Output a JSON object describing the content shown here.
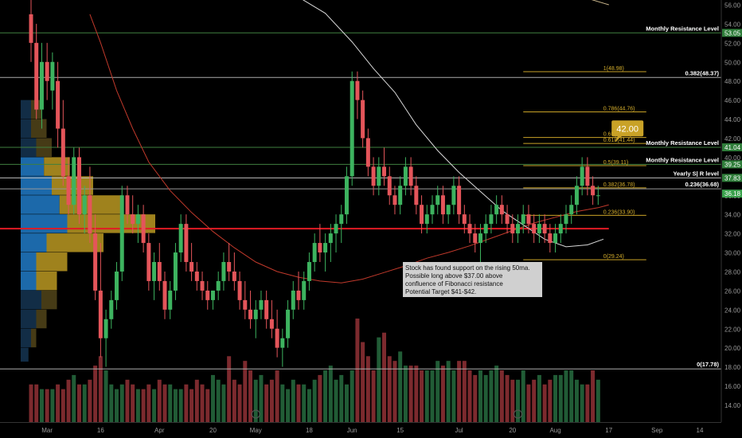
{
  "chart_data": {
    "type": "candlestick",
    "y_range": [
      12.2,
      56.5
    ],
    "y_ticks": [
      14,
      16,
      18,
      20,
      22,
      24,
      26,
      28,
      30,
      32,
      34,
      36,
      38,
      40,
      42,
      44,
      46,
      48,
      50,
      52,
      54,
      56
    ],
    "y_tick_labels": [
      "14.00",
      "16.00",
      "18.00",
      "20.00",
      "22.00",
      "24.00",
      "26.00",
      "28.00",
      "30.00",
      "32.00",
      "34.00",
      "36.00",
      "38.00",
      "40.00",
      "42.00",
      "44.00",
      "46.00",
      "48.00",
      "50.00",
      "52.00",
      "54.00",
      "56.00"
    ],
    "x_ticks": [
      {
        "label": "Mar",
        "bar": 3
      },
      {
        "label": "16",
        "bar": 13
      },
      {
        "label": "Apr",
        "bar": 24
      },
      {
        "label": "20",
        "bar": 34
      },
      {
        "label": "May",
        "bar": 42
      },
      {
        "label": "18",
        "bar": 52
      },
      {
        "label": "Jun",
        "bar": 60
      },
      {
        "label": "15",
        "bar": 69
      },
      {
        "label": "Jul",
        "bar": 80
      },
      {
        "label": "20",
        "bar": 90
      },
      {
        "label": "Aug",
        "bar": 98
      },
      {
        "label": "17",
        "bar": 108
      },
      {
        "label": "Sep",
        "bar": 117
      },
      {
        "label": "14",
        "bar": 125
      }
    ],
    "x_bar_range": [
      -2.5,
      137
    ],
    "colors": {
      "up": "#3db35f",
      "down": "#e4555a",
      "up_volume": "#215c36",
      "down_volume": "#7c2a2e"
    },
    "bar_step_px": 6.72,
    "candles_ohlc": [
      [
        55,
        58,
        50,
        52
      ],
      [
        52,
        54,
        44,
        45
      ],
      [
        45,
        52,
        43,
        50
      ],
      [
        50,
        52,
        46,
        48
      ],
      [
        47,
        51,
        45,
        50
      ],
      [
        48,
        50,
        41,
        43
      ],
      [
        43,
        46,
        37,
        38
      ],
      [
        38,
        40,
        34,
        35
      ],
      [
        35,
        41,
        34,
        40
      ],
      [
        40,
        41,
        33,
        34
      ],
      [
        34,
        37,
        32,
        36
      ],
      [
        36,
        39,
        31,
        32
      ],
      [
        32,
        34,
        25,
        26
      ],
      [
        26,
        31,
        19,
        21
      ],
      [
        21,
        24,
        18,
        23
      ],
      [
        23,
        26,
        22,
        25
      ],
      [
        25,
        29,
        24,
        28
      ],
      [
        28,
        37,
        27,
        36
      ],
      [
        36,
        37,
        33,
        34
      ],
      [
        34,
        36,
        32,
        33
      ],
      [
        33,
        35,
        31,
        34
      ],
      [
        34,
        35,
        30,
        31
      ],
      [
        31,
        32,
        26,
        27
      ],
      [
        27,
        30,
        25,
        29
      ],
      [
        29,
        31,
        26,
        27
      ],
      [
        27,
        28,
        23,
        24
      ],
      [
        24,
        27,
        23,
        26
      ],
      [
        26,
        31,
        25,
        30
      ],
      [
        30,
        34,
        29,
        33
      ],
      [
        33,
        34,
        28,
        29
      ],
      [
        29,
        31,
        27,
        28
      ],
      [
        28,
        29,
        26,
        27
      ],
      [
        27,
        28,
        25,
        26
      ],
      [
        26,
        27,
        24,
        25
      ],
      [
        25,
        26,
        24,
        26
      ],
      [
        26,
        28,
        25,
        27
      ],
      [
        27,
        30,
        26,
        29
      ],
      [
        29,
        31,
        27,
        28
      ],
      [
        28,
        30,
        26,
        27
      ],
      [
        27,
        28,
        24,
        25
      ],
      [
        25,
        27,
        23,
        24
      ],
      [
        24,
        26,
        22,
        23
      ],
      [
        23,
        25,
        21,
        24
      ],
      [
        24,
        26,
        23,
        25
      ],
      [
        25,
        26,
        22,
        23
      ],
      [
        23,
        25,
        21,
        22
      ],
      [
        22,
        24,
        19,
        20
      ],
      [
        20,
        22,
        18,
        21
      ],
      [
        21,
        25,
        20,
        24
      ],
      [
        24,
        27,
        23,
        26
      ],
      [
        26,
        28,
        24,
        25
      ],
      [
        25,
        28,
        24,
        27
      ],
      [
        27,
        30,
        26,
        29
      ],
      [
        29,
        32,
        28,
        31
      ],
      [
        31,
        33,
        29,
        30
      ],
      [
        30,
        32,
        28,
        31
      ],
      [
        31,
        33,
        29,
        32
      ],
      [
        32,
        34,
        30,
        33
      ],
      [
        33,
        35,
        31,
        34
      ],
      [
        34,
        39,
        33,
        38
      ],
      [
        38,
        49,
        37,
        48
      ],
      [
        48,
        49,
        44,
        46
      ],
      [
        46,
        47,
        41,
        42
      ],
      [
        42,
        43,
        38,
        39
      ],
      [
        39,
        40,
        36,
        37
      ],
      [
        37,
        40,
        36,
        39
      ],
      [
        39,
        41,
        37,
        38
      ],
      [
        38,
        39,
        35,
        36
      ],
      [
        36,
        37,
        34,
        35
      ],
      [
        35,
        38,
        34,
        37
      ],
      [
        37,
        40,
        36,
        39
      ],
      [
        39,
        40,
        36,
        37
      ],
      [
        37,
        38,
        34,
        35
      ],
      [
        35,
        36,
        32,
        33
      ],
      [
        33,
        35,
        32,
        34
      ],
      [
        34,
        36,
        33,
        35
      ],
      [
        35,
        37,
        34,
        36
      ],
      [
        36,
        37,
        33,
        34
      ],
      [
        34,
        35,
        33,
        35
      ],
      [
        35,
        38,
        34,
        37
      ],
      [
        37,
        38,
        33,
        34
      ],
      [
        34,
        35,
        32,
        33
      ],
      [
        33,
        34,
        31,
        32
      ],
      [
        32,
        33,
        30,
        31
      ],
      [
        31,
        33,
        29,
        32
      ],
      [
        32,
        34,
        31,
        33
      ],
      [
        33,
        35,
        32,
        34
      ],
      [
        34,
        36,
        33,
        35
      ],
      [
        35,
        36,
        33,
        34
      ],
      [
        34,
        35,
        32,
        33
      ],
      [
        33,
        34,
        31,
        32
      ],
      [
        32,
        34,
        31,
        33
      ],
      [
        33,
        35,
        32,
        34
      ],
      [
        34,
        35,
        32,
        33
      ],
      [
        33,
        34,
        31,
        32
      ],
      [
        32,
        34,
        31,
        33
      ],
      [
        33,
        34,
        31,
        32
      ],
      [
        32,
        33,
        30,
        31
      ],
      [
        31,
        33,
        30,
        32
      ],
      [
        32,
        34,
        31,
        33
      ],
      [
        33,
        35,
        32,
        34
      ],
      [
        34,
        36,
        33,
        35
      ],
      [
        35,
        38,
        34,
        37
      ],
      [
        37,
        40,
        36,
        39
      ],
      [
        39,
        40,
        36,
        37
      ],
      [
        37,
        38,
        35,
        36
      ],
      [
        36,
        37,
        35,
        36
      ]
    ],
    "volumes": [
      8,
      8,
      7,
      7,
      7,
      8,
      7,
      9,
      10,
      8,
      8,
      9,
      12,
      14,
      11,
      8,
      7,
      8,
      9,
      8,
      7,
      7,
      8,
      7,
      9,
      8,
      8,
      7,
      7,
      8,
      7,
      9,
      8,
      7,
      10,
      9,
      8,
      14,
      9,
      8,
      13,
      11,
      9,
      10,
      8,
      9,
      11,
      8,
      7,
      9,
      8,
      8,
      7,
      9,
      10,
      11,
      12,
      9,
      10,
      8,
      11,
      22,
      17,
      14,
      11,
      18,
      19,
      14,
      13,
      15,
      12,
      12,
      12,
      11,
      11,
      11,
      13,
      12,
      13,
      11,
      13,
      13,
      11,
      10,
      11,
      10,
      11,
      12,
      11,
      10,
      9,
      9,
      11,
      8,
      9,
      10,
      8,
      9,
      10,
      10,
      11,
      11,
      9,
      8,
      8,
      11,
      9
    ],
    "volume_scale_max": 22,
    "ma_fast": {
      "start_bar": 11,
      "points": [
        [
          11,
          55
        ],
        [
          13,
          52
        ],
        [
          16,
          47
        ],
        [
          19,
          43
        ],
        [
          22,
          39.5
        ],
        [
          26,
          36.5
        ],
        [
          30,
          34.2
        ],
        [
          34,
          32.2
        ],
        [
          38,
          30.5
        ],
        [
          42,
          29
        ],
        [
          46,
          28
        ],
        [
          50,
          27.4
        ],
        [
          54,
          27
        ],
        [
          58,
          26.8
        ],
        [
          62,
          27.2
        ],
        [
          66,
          27.9
        ],
        [
          70,
          28.6
        ],
        [
          74,
          29.4
        ],
        [
          78,
          30
        ],
        [
          82,
          30.7
        ],
        [
          86,
          31.5
        ],
        [
          90,
          32.3
        ],
        [
          94,
          33.1
        ],
        [
          98,
          33.7
        ],
        [
          102,
          34.3
        ],
        [
          106,
          34.7
        ],
        [
          108,
          35
        ]
      ]
    },
    "ma_slow": {
      "points": [
        [
          50,
          56.8
        ],
        [
          55,
          55.1
        ],
        [
          60,
          52.1
        ],
        [
          64,
          49.3
        ],
        [
          68,
          46.8
        ],
        [
          72,
          43.4
        ],
        [
          76,
          40.7
        ],
        [
          80,
          38.4
        ],
        [
          84,
          36.4
        ],
        [
          88,
          34.4
        ],
        [
          92,
          32.9
        ],
        [
          96,
          31.4
        ],
        [
          100,
          30.6
        ],
        [
          104,
          30.8
        ],
        [
          107,
          31.4
        ]
      ]
    },
    "ma_slow_2": {
      "points": [
        [
          102,
          57
        ],
        [
          108,
          56
        ]
      ]
    },
    "support_line": {
      "price": 32.5,
      "from_bar": 0,
      "to_bar": 108,
      "color": "#e01b24"
    },
    "horizontal_levels": [
      {
        "price": 53.05,
        "label": "Monthly Resistance Level",
        "axis_label": "53.05",
        "color": "#3f7f3f",
        "full": true
      },
      {
        "price": 48.37,
        "label": "0.382(48.37)",
        "color": "#aaaaaa",
        "full": true
      },
      {
        "price": 41.04,
        "label": "Monthly Resistance Level",
        "axis_label": "41.04",
        "color": "#3f7f3f",
        "full": true
      },
      {
        "price": 39.25,
        "label": "Monthly Resistance Level",
        "axis_label": "39.25",
        "color": "#3f7f3f",
        "full": true
      },
      {
        "price": 37.83,
        "label": "Yearly  S| R level",
        "axis_label": "37.83",
        "color": "#bbbbbb",
        "full": true
      },
      {
        "price": 36.68,
        "label": "0.236(36.68)",
        "color": "#999999",
        "full": true
      },
      {
        "price": 17.78,
        "label": "0(17.78)",
        "color": "#aaaaaa",
        "full": true
      }
    ],
    "fib_levels": [
      {
        "price": 48.98,
        "label": "1(48.98)"
      },
      {
        "price": 44.76,
        "label": "0.786(44.76)"
      },
      {
        "price": 42.07,
        "label": "0.65(42.07)"
      },
      {
        "price": 41.44,
        "label": "0.618(41.44)"
      },
      {
        "price": 39.11,
        "label": "0.5(39.11)"
      },
      {
        "price": 36.78,
        "label": "0.382(36.78)"
      },
      {
        "price": 33.9,
        "label": "0.236(33.90)"
      },
      {
        "price": 29.24,
        "label": "0(29.24)"
      }
    ],
    "fib_range_bars": [
      92,
      115
    ],
    "last_price": {
      "price": 36.18,
      "axis_label": "36.18"
    },
    "target_callout": {
      "text": "42.00",
      "bar": 110,
      "price": 41.6
    },
    "annotation": {
      "lines": [
        "Stock has found support on the rising 50ma.",
        "Possible long above $37.00 above",
        "confluence of Fibonacci resistance",
        "Potential Target $41-$42."
      ],
      "bar": 69.5,
      "price": 29.0
    },
    "volume_profile": [
      {
        "lo": 44.0,
        "hi": 46.0,
        "a": 4,
        "b": 2
      },
      {
        "lo": 42.0,
        "hi": 44.0,
        "a": 4,
        "b": 3
      },
      {
        "lo": 40.0,
        "hi": 42.0,
        "a": 6,
        "b": 3
      },
      {
        "lo": 38.0,
        "hi": 40.0,
        "a": 9,
        "b": 5
      },
      {
        "lo": 36.0,
        "hi": 38.0,
        "a": 12,
        "b": 8
      },
      {
        "lo": 34.0,
        "hi": 36.0,
        "a": 15,
        "b": 12
      },
      {
        "lo": 32.0,
        "hi": 34.0,
        "a": 18,
        "b": 17
      },
      {
        "lo": 30.0,
        "hi": 32.0,
        "a": 10,
        "b": 11
      },
      {
        "lo": 28.0,
        "hi": 30.0,
        "a": 6,
        "b": 6
      },
      {
        "lo": 26.0,
        "hi": 28.0,
        "a": 6,
        "b": 4
      },
      {
        "lo": 24.0,
        "hi": 26.0,
        "a": 8,
        "b": 3
      },
      {
        "lo": 22.0,
        "hi": 24.0,
        "a": 6,
        "b": 2
      },
      {
        "lo": 20.0,
        "hi": 22.0,
        "a": 4,
        "b": 1
      },
      {
        "lo": 18.5,
        "hi": 20.0,
        "a": 3,
        "b": 0
      }
    ],
    "volume_profile_colors": {
      "a": "#1d6fb3",
      "b": "#a8891f",
      "a_dim": "#132f4a",
      "b_dim": "#4a3e17"
    },
    "event_markers": [
      {
        "bar": 42
      },
      {
        "bar": 91
      }
    ]
  }
}
